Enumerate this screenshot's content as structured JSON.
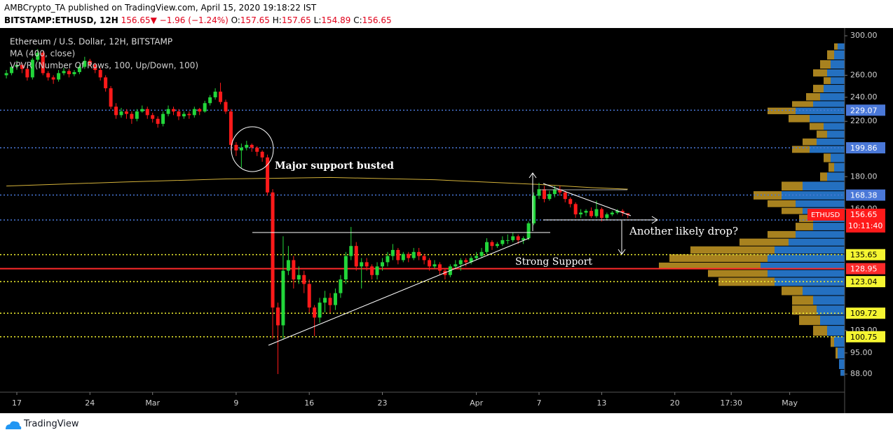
{
  "header": {
    "published": "AMBCrypto_TA published on TradingView.com, April 15, 2020 19:18:22 IST",
    "symbol": "BITSTAMP:ETHUSD, 12H",
    "last": "156.65",
    "arrow": "▼",
    "change": "−1.96 (−1.24%)",
    "o_label": "O:",
    "o": "157.65",
    "h_label": "H:",
    "h": "157.65",
    "l_label": "L:",
    "l": "154.89",
    "c_label": "C:",
    "c": "156.65"
  },
  "footer": {
    "brand": "TradingView"
  },
  "chart_data": {
    "type": "candlestick",
    "legend": [
      "Ethereum / U.S. Dollar, 12H, BITSTAMP",
      "MA (400, close)",
      "VPVR (Number Of Rows, 100, Up/Down, 100)"
    ],
    "log_scale": true,
    "grid": false,
    "xlim": [
      -1.61,
      79.26
    ],
    "ylim": [
      82.4,
      307
    ],
    "xticks": [
      {
        "value": 0,
        "label": "17"
      },
      {
        "value": 7,
        "label": "24"
      },
      {
        "value": 13,
        "label": "Mar"
      },
      {
        "value": 21,
        "label": "9"
      },
      {
        "value": 28,
        "label": "16"
      },
      {
        "value": 35,
        "label": "23"
      },
      {
        "value": 44,
        "label": "Apr"
      },
      {
        "value": 50,
        "label": "7"
      },
      {
        "value": 56,
        "label": "13"
      },
      {
        "value": 63,
        "label": "20"
      },
      {
        "value": 68.4,
        "label": "17:30"
      },
      {
        "value": 74,
        "label": "May"
      }
    ],
    "yticks": [
      {
        "value": 300,
        "label": "300.00"
      },
      {
        "value": 260,
        "label": "260.00"
      },
      {
        "value": 240,
        "label": "240.00"
      },
      {
        "value": 220,
        "label": "220.00"
      },
      {
        "value": 180,
        "label": "180.00"
      },
      {
        "value": 160,
        "label": "160.00"
      },
      {
        "value": 103,
        "label": "103.00"
      },
      {
        "value": 95,
        "label": "95.00"
      },
      {
        "value": 88,
        "label": "88.00"
      }
    ],
    "up_color": "#22d63a",
    "down_color": "#ff1a1a",
    "x": [
      -1,
      -0.5,
      0,
      0.5,
      1,
      1.5,
      2,
      2.5,
      3,
      3.5,
      4,
      4.5,
      5,
      5.5,
      6,
      6.5,
      7,
      7.5,
      8,
      8.5,
      9,
      9.5,
      10,
      10.5,
      11,
      11.5,
      12,
      12.5,
      13,
      13.5,
      14,
      14.5,
      15,
      15.5,
      16,
      16.5,
      17,
      17.5,
      18,
      18.5,
      19,
      19.5,
      20,
      20.5,
      21,
      21.5,
      22,
      22.5,
      23,
      23.5,
      24,
      24.5,
      25,
      25.5,
      26,
      26.5,
      27,
      27.5,
      28,
      28.5,
      29,
      29.5,
      30,
      30.5,
      31,
      31.5,
      32,
      32.5,
      33,
      33.5,
      34,
      34.5,
      35,
      35.5,
      36,
      36.5,
      37,
      37.5,
      38,
      38.5,
      39,
      39.5,
      40,
      40.5,
      41,
      41.5,
      42,
      42.5,
      43,
      43.5,
      44,
      44.5,
      45,
      45.5,
      46,
      46.5,
      47,
      47.5,
      48,
      48.5,
      49,
      49.5,
      50,
      50.5,
      51,
      51.5,
      52,
      52.5,
      53,
      53.5,
      54,
      54.5,
      55,
      55.5,
      56,
      56.5,
      57,
      57.5,
      58,
      58.5
    ],
    "candles": [
      [
        260,
        265,
        257,
        262
      ],
      [
        262,
        270,
        260,
        268
      ],
      [
        268,
        274,
        265,
        270
      ],
      [
        270,
        272,
        262,
        266
      ],
      [
        266,
        268,
        255,
        258
      ],
      [
        258,
        277,
        256,
        275
      ],
      [
        275,
        286,
        273,
        282
      ],
      [
        282,
        284,
        260,
        262
      ],
      [
        262,
        264,
        255,
        258
      ],
      [
        258,
        260,
        252,
        256
      ],
      [
        256,
        265,
        254,
        262
      ],
      [
        262,
        267,
        260,
        264
      ],
      [
        264,
        266,
        258,
        261
      ],
      [
        261,
        265,
        259,
        263
      ],
      [
        263,
        270,
        261,
        268
      ],
      [
        268,
        278,
        266,
        274
      ],
      [
        274,
        276,
        268,
        270
      ],
      [
        270,
        272,
        262,
        265
      ],
      [
        265,
        267,
        255,
        258
      ],
      [
        258,
        260,
        245,
        248
      ],
      [
        248,
        250,
        230,
        232
      ],
      [
        232,
        235,
        222,
        225
      ],
      [
        225,
        231,
        223,
        228
      ],
      [
        228,
        230,
        222,
        226
      ],
      [
        226,
        228,
        218,
        222
      ],
      [
        222,
        230,
        220,
        228
      ],
      [
        228,
        233,
        227,
        230
      ],
      [
        230,
        232,
        222,
        225
      ],
      [
        225,
        227,
        219,
        222
      ],
      [
        222,
        224,
        215,
        218
      ],
      [
        218,
        228,
        216,
        226
      ],
      [
        226,
        233,
        224,
        230
      ],
      [
        230,
        232,
        225,
        228
      ],
      [
        228,
        230,
        221,
        224
      ],
      [
        224,
        228,
        222,
        226
      ],
      [
        226,
        228,
        222,
        225
      ],
      [
        225,
        232,
        223,
        230
      ],
      [
        230,
        231,
        225,
        228
      ],
      [
        228,
        237,
        227,
        235
      ],
      [
        235,
        242,
        233,
        240
      ],
      [
        240,
        248,
        238,
        245
      ],
      [
        245,
        253,
        234,
        236
      ],
      [
        236,
        238,
        226,
        228
      ],
      [
        228,
        230,
        198,
        202
      ],
      [
        202,
        204,
        194,
        198
      ],
      [
        198,
        203,
        186,
        200
      ],
      [
        200,
        205,
        198,
        202
      ],
      [
        202,
        203,
        197,
        200
      ],
      [
        200,
        201,
        194,
        197
      ],
      [
        197,
        198,
        190,
        193
      ],
      [
        193,
        195,
        168,
        170
      ],
      [
        170,
        172,
        100,
        112
      ],
      [
        112,
        114,
        88,
        105
      ],
      [
        105,
        145,
        100,
        128
      ],
      [
        128,
        140,
        126,
        133
      ],
      [
        133,
        135,
        120,
        124
      ],
      [
        124,
        130,
        122,
        126
      ],
      [
        126,
        128,
        118,
        122
      ],
      [
        122,
        124,
        110,
        112
      ],
      [
        112,
        113,
        101,
        108
      ],
      [
        108,
        116,
        106,
        114
      ],
      [
        114,
        119,
        110,
        116
      ],
      [
        116,
        118,
        110,
        113
      ],
      [
        113,
        120,
        111,
        118
      ],
      [
        118,
        126,
        116,
        124
      ],
      [
        124,
        137,
        122,
        135
      ],
      [
        135,
        150,
        133,
        140
      ],
      [
        140,
        142,
        128,
        130
      ],
      [
        130,
        134,
        120,
        132
      ],
      [
        132,
        134,
        128,
        130
      ],
      [
        130,
        131,
        124,
        126
      ],
      [
        126,
        132,
        124,
        130
      ],
      [
        130,
        134,
        128,
        132
      ],
      [
        132,
        137,
        130,
        135
      ],
      [
        135,
        141,
        133,
        138
      ],
      [
        138,
        139,
        131,
        133
      ],
      [
        133,
        137,
        132,
        136
      ],
      [
        136,
        137,
        132,
        134
      ],
      [
        134,
        139,
        133,
        137
      ],
      [
        137,
        139,
        133,
        135
      ],
      [
        135,
        136,
        131,
        133
      ],
      [
        133,
        134,
        128,
        130
      ],
      [
        130,
        133,
        129,
        131
      ],
      [
        131,
        132,
        126,
        128
      ],
      [
        128,
        129,
        124,
        126
      ],
      [
        126,
        131,
        125,
        130
      ],
      [
        130,
        133,
        129,
        131
      ],
      [
        131,
        134,
        128,
        133
      ],
      [
        133,
        134,
        130,
        132
      ],
      [
        132,
        135,
        131,
        134
      ],
      [
        134,
        137,
        133,
        135
      ],
      [
        135,
        139,
        134,
        137
      ],
      [
        137,
        144,
        136,
        142
      ],
      [
        142,
        143,
        138,
        140
      ],
      [
        140,
        142,
        139,
        141
      ],
      [
        141,
        145,
        140,
        143
      ],
      [
        143,
        146,
        141,
        143
      ],
      [
        143,
        147,
        142,
        145
      ],
      [
        145,
        146,
        141,
        143
      ],
      [
        143,
        145,
        141,
        144
      ],
      [
        144,
        153,
        143,
        152
      ],
      [
        152,
        170,
        151,
        168
      ],
      [
        168,
        176,
        166,
        172
      ],
      [
        172,
        174,
        164,
        166
      ],
      [
        166,
        171,
        165,
        169
      ],
      [
        169,
        174,
        167,
        172
      ],
      [
        172,
        174,
        168,
        170
      ],
      [
        170,
        171,
        164,
        166
      ],
      [
        166,
        167,
        161,
        163
      ],
      [
        163,
        164,
        155,
        157
      ],
      [
        157,
        160,
        155,
        158
      ],
      [
        158,
        160,
        156,
        159
      ],
      [
        159,
        161,
        155,
        156
      ],
      [
        156,
        165,
        155,
        160
      ],
      [
        160,
        161,
        153,
        155
      ],
      [
        155,
        158,
        154,
        157
      ],
      [
        157,
        159,
        156,
        158
      ],
      [
        158,
        160,
        157,
        159
      ],
      [
        159,
        160,
        156,
        158
      ],
      [
        157.65,
        157.65,
        154.89,
        156.65
      ]
    ],
    "ma": {
      "color": "#d4b23a",
      "x": [
        -1,
        10,
        20,
        30,
        40,
        50,
        55,
        58.5
      ],
      "values": [
        174,
        176.5,
        178.5,
        179.5,
        178,
        175,
        173,
        172
      ]
    },
    "vpvr": {
      "up_color": "#2470c0",
      "down_color": "#a8821f",
      "prices": [
        290,
        280,
        270,
        262,
        255,
        248,
        240,
        234,
        229,
        222,
        216,
        210,
        204,
        199,
        193,
        186,
        180,
        174,
        168,
        163,
        159,
        155,
        150,
        146,
        142,
        138,
        134,
        130,
        127,
        123,
        119,
        115,
        111,
        107,
        103,
        99,
        95,
        91,
        88
      ],
      "up": [
        10,
        15,
        20,
        25,
        20,
        30,
        35,
        45,
        70,
        50,
        30,
        25,
        40,
        50,
        20,
        15,
        25,
        60,
        90,
        70,
        60,
        45,
        45,
        70,
        80,
        100,
        110,
        120,
        110,
        100,
        60,
        45,
        40,
        35,
        25,
        15,
        10,
        8,
        6
      ],
      "down": [
        5,
        10,
        15,
        20,
        10,
        15,
        20,
        30,
        40,
        30,
        20,
        15,
        20,
        25,
        10,
        8,
        10,
        30,
        40,
        40,
        30,
        20,
        25,
        40,
        70,
        120,
        140,
        145,
        85,
        80,
        30,
        30,
        35,
        30,
        20,
        5,
        3,
        0,
        0
      ]
    },
    "levels": [
      {
        "value": 229.07,
        "color": "#4a78d8",
        "dash": true
      },
      {
        "value": 199.86,
        "color": "#4a78d8",
        "dash": true
      },
      {
        "value": 168.38,
        "color": "#4a78d8",
        "dash": true
      },
      {
        "value": 153.85,
        "color": "#4a78d8",
        "dash": true
      },
      {
        "value": 135.65,
        "color": "#f5f531",
        "dash": true
      },
      {
        "value": 128.95,
        "color": "#ff2a2a",
        "dash": false
      },
      {
        "value": 123.04,
        "color": "#f5f531",
        "dash": true
      },
      {
        "value": 109.72,
        "color": "#f5f531",
        "dash": true
      },
      {
        "value": 100.75,
        "color": "#f5f531",
        "dash": true
      }
    ],
    "last": {
      "symbol": "ETHUSD",
      "value": 156.65,
      "countdown": "10:11:40"
    },
    "annotations": [
      "Major support busted",
      "Another likely drop?",
      "Strong Support"
    ]
  }
}
